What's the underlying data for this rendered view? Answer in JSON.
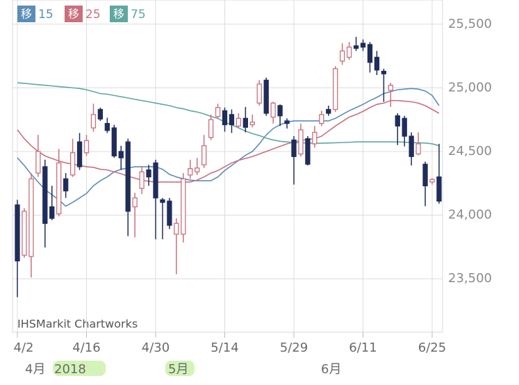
{
  "chart_data": {
    "type": "candlestick",
    "watermark": "IHSMarkit Chartworks",
    "legend_prefix": "移",
    "month_labels": [
      "4月",
      "2018",
      "5月",
      "6月"
    ],
    "up_color": "#c9707d",
    "down_color": "#1f2d5a",
    "grid": true,
    "ylim": [
      23080,
      25690
    ],
    "yticks": [
      {
        "value": 23500,
        "label": "23,500"
      },
      {
        "value": 24000,
        "label": "24,000"
      },
      {
        "value": 24500,
        "label": "24,500"
      },
      {
        "value": 25000,
        "label": "25,000"
      },
      {
        "value": 25500,
        "label": "25,500"
      }
    ],
    "categories": [
      "4/2",
      null,
      null,
      null,
      null,
      null,
      null,
      null,
      null,
      null,
      "4/16",
      null,
      null,
      null,
      null,
      null,
      null,
      null,
      null,
      null,
      "4/30",
      null,
      null,
      null,
      null,
      null,
      null,
      null,
      null,
      null,
      "5/14",
      null,
      null,
      null,
      null,
      null,
      null,
      null,
      null,
      null,
      "5/29",
      null,
      null,
      null,
      null,
      null,
      null,
      null,
      null,
      null,
      "6/11",
      null,
      null,
      null,
      null,
      null,
      null,
      null,
      null,
      null,
      "6/25",
      null
    ],
    "open": [
      24080,
      23685,
      23675,
      24330,
      24380,
      24065,
      24010,
      24285,
      24315,
      24575,
      24490,
      24685,
      24830,
      24720,
      24685,
      24500,
      24575,
      24065,
      24210,
      24355,
      24410,
      24120,
      24110,
      23850,
      23850,
      24315,
      24340,
      24395,
      24610,
      24775,
      24820,
      24790,
      24700,
      24760,
      24710,
      24880,
      25060,
      24770,
      24860,
      24740,
      24590,
      24480,
      24600,
      24560,
      24720,
      24830,
      24830,
      25210,
      25240,
      25330,
      25350,
      25340,
      25240,
      25130,
      24980,
      24780,
      24760,
      24620,
      24480,
      24400,
      24260,
      24300
    ],
    "high": [
      24120,
      24055,
      24330,
      24630,
      24435,
      24230,
      24520,
      24330,
      24600,
      24645,
      24630,
      24875,
      24845,
      24765,
      24710,
      24545,
      24600,
      24175,
      24380,
      24395,
      24435,
      24135,
      24135,
      23975,
      24330,
      24435,
      24450,
      24630,
      24790,
      24875,
      24845,
      24830,
      24800,
      24850,
      24790,
      25060,
      25080,
      24890,
      24870,
      24760,
      24620,
      24720,
      24620,
      24700,
      24820,
      24860,
      25170,
      25350,
      25360,
      25400,
      25380,
      25360,
      25290,
      25150,
      25040,
      24800,
      24780,
      24650,
      24650,
      24420,
      24290,
      24560
    ],
    "low": [
      23355,
      23665,
      23510,
      24300,
      23745,
      23960,
      23990,
      24135,
      24300,
      24355,
      24465,
      24655,
      24740,
      24645,
      24450,
      24355,
      23835,
      23825,
      24165,
      24230,
      23810,
      23810,
      23890,
      23535,
      23785,
      24285,
      24315,
      24370,
      24590,
      24755,
      24655,
      24645,
      24680,
      24650,
      24690,
      24860,
      24780,
      24720,
      24700,
      24680,
      24240,
      24460,
      24390,
      24530,
      24700,
      24780,
      24810,
      25180,
      25220,
      25290,
      25290,
      25120,
      25100,
      24890,
      24850,
      24550,
      24540,
      24390,
      24470,
      24070,
      24240,
      24090
    ],
    "close": [
      23640,
      24030,
      24285,
      24500,
      23935,
      23975,
      24410,
      24190,
      24490,
      24380,
      24585,
      24790,
      24755,
      24665,
      24465,
      24450,
      24030,
      24135,
      24340,
      24300,
      24135,
      24100,
      23920,
      23935,
      24285,
      24365,
      24370,
      24545,
      24750,
      24845,
      24710,
      24710,
      24760,
      24690,
      24730,
      25030,
      24800,
      24880,
      24780,
      24720,
      24460,
      24670,
      24400,
      24650,
      24790,
      24800,
      25150,
      25290,
      25320,
      25310,
      25320,
      25200,
      25140,
      25110,
      25020,
      24700,
      24620,
      24460,
      24560,
      24230,
      24280,
      24110
    ],
    "series": [
      {
        "name": "15",
        "color": "#5b8db8",
        "values": [
          24450,
          24390,
          24320,
          24260,
          24200,
          24160,
          24120,
          24070,
          24100,
          24135,
          24170,
          24230,
          24270,
          24300,
          24340,
          24360,
          24370,
          24380,
          24380,
          24380,
          24380,
          24360,
          24320,
          24300,
          24285,
          24275,
          24270,
          24270,
          24270,
          24300,
          24350,
          24390,
          24430,
          24470,
          24500,
          24560,
          24630,
          24680,
          24710,
          24730,
          24740,
          24740,
          24740,
          24740,
          24740,
          24740,
          24760,
          24790,
          24820,
          24845,
          24870,
          24900,
          24925,
          24955,
          24970,
          24985,
          24990,
          24995,
          24990,
          24975,
          24940,
          24860
        ]
      },
      {
        "name": "25",
        "color": "#c9707d",
        "values": [
          24670,
          24600,
          24545,
          24500,
          24465,
          24445,
          24425,
          24410,
          24400,
          24390,
          24380,
          24375,
          24360,
          24355,
          24340,
          24325,
          24305,
          24290,
          24275,
          24265,
          24260,
          24260,
          24260,
          24260,
          24260,
          24260,
          24275,
          24300,
          24330,
          24350,
          24380,
          24410,
          24430,
          24445,
          24460,
          24480,
          24500,
          24520,
          24540,
          24560,
          24575,
          24585,
          24595,
          24600,
          24620,
          24660,
          24700,
          24735,
          24770,
          24790,
          24815,
          24845,
          24870,
          24880,
          24900,
          24900,
          24895,
          24890,
          24880,
          24860,
          24830,
          24800
        ]
      },
      {
        "name": "75",
        "color": "#5fa8a0",
        "values": [
          25040,
          25035,
          25030,
          25025,
          25020,
          25015,
          25010,
          25005,
          25000,
          24995,
          24985,
          24970,
          24955,
          24950,
          24940,
          24930,
          24920,
          24910,
          24900,
          24890,
          24880,
          24870,
          24860,
          24845,
          24835,
          24820,
          24810,
          24795,
          24775,
          24760,
          24730,
          24710,
          24685,
          24660,
          24640,
          24625,
          24605,
          24590,
          24580,
          24575,
          24570,
          24568,
          24566,
          24565,
          24565,
          24566,
          24568,
          24570,
          24572,
          24575,
          24575,
          24575,
          24575,
          24575,
          24575,
          24575,
          24573,
          24570,
          24568,
          24566,
          24560,
          24545
        ]
      }
    ]
  }
}
